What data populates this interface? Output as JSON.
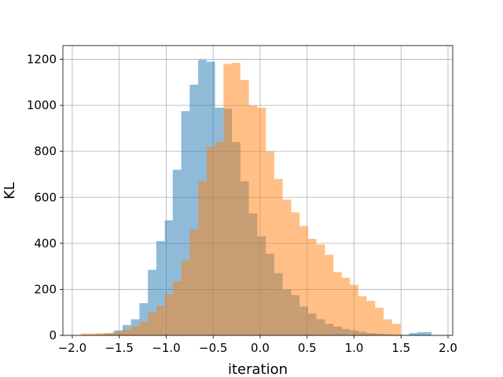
{
  "chart_data": {
    "type": "histogram",
    "xlabel": "iteration",
    "ylabel": "KL",
    "xlim": [
      -2.1,
      2.05
    ],
    "ylim": [
      0,
      1260
    ],
    "xticks": [
      -2.0,
      -1.5,
      -1.0,
      -0.5,
      0.0,
      0.5,
      1.0,
      1.5,
      2.0
    ],
    "xtick_labels": [
      "−2.0",
      "−1.5",
      "−1.0",
      "−0.5",
      "0.0",
      "0.5",
      "1.0",
      "1.5",
      "2.0"
    ],
    "yticks": [
      0,
      200,
      400,
      600,
      800,
      1000,
      1200
    ],
    "ytick_labels": [
      "0",
      "200",
      "400",
      "600",
      "800",
      "1000",
      "1200"
    ],
    "grid": true,
    "alpha": 0.5,
    "series": [
      {
        "color": "#1f77b4",
        "bin_edges": [
          -1.91,
          -1.785,
          -1.655,
          -1.555,
          -1.465,
          -1.375,
          -1.285,
          -1.195,
          -1.105,
          -1.015,
          -0.93,
          -0.84,
          -0.75,
          -0.66,
          -0.57,
          -0.48,
          -0.39,
          -0.3,
          -0.21,
          -0.12,
          -0.03,
          0.06,
          0.15,
          0.24,
          0.33,
          0.42,
          0.51,
          0.6,
          0.69,
          0.78,
          0.87,
          0.955,
          1.045,
          1.135,
          1.225,
          1.315,
          1.405,
          1.495,
          1.585,
          1.675,
          1.825
        ],
        "counts": [
          1,
          3,
          8,
          22,
          45,
          70,
          140,
          285,
          410,
          500,
          720,
          975,
          1090,
          1198,
          1190,
          990,
          985,
          840,
          670,
          530,
          430,
          355,
          270,
          200,
          175,
          125,
          95,
          70,
          50,
          38,
          28,
          22,
          15,
          10,
          7,
          5,
          3,
          2,
          10,
          14
        ]
      },
      {
        "color": "#ff7f0e",
        "bin_edges": [
          -1.91,
          -1.74,
          -1.58,
          -1.465,
          -1.375,
          -1.285,
          -1.195,
          -1.105,
          -1.015,
          -0.93,
          -0.84,
          -0.75,
          -0.66,
          -0.57,
          -0.48,
          -0.39,
          -0.3,
          -0.21,
          -0.12,
          -0.03,
          0.06,
          0.15,
          0.24,
          0.33,
          0.42,
          0.51,
          0.6,
          0.69,
          0.78,
          0.87,
          0.955,
          1.045,
          1.135,
          1.225,
          1.315,
          1.405,
          1.495
        ],
        "counts": [
          8,
          10,
          15,
          25,
          40,
          60,
          100,
          130,
          180,
          235,
          325,
          460,
          670,
          820,
          840,
          1180,
          1185,
          1110,
          1000,
          990,
          800,
          680,
          590,
          535,
          475,
          420,
          395,
          350,
          275,
          250,
          220,
          170,
          150,
          120,
          70,
          50
        ]
      }
    ]
  }
}
